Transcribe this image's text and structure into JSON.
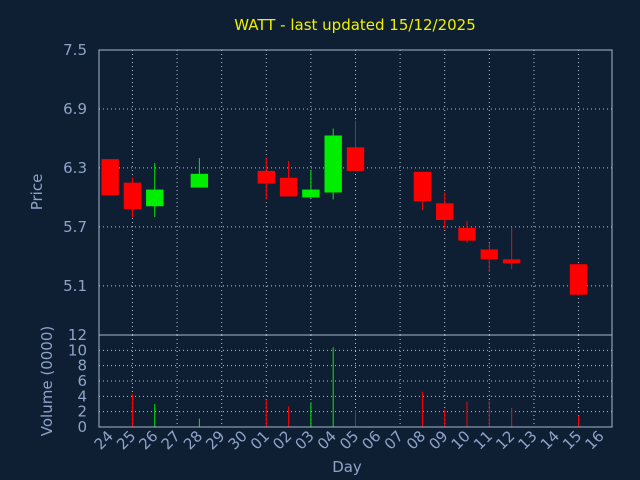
{
  "chart_data": [
    {
      "type": "candlestick",
      "title": "WATT - last updated 15/12/2025",
      "ylabel": "Price",
      "ylim": [
        4.6,
        7.5
      ],
      "yticks": [
        5.1,
        5.7,
        6.3,
        6.9,
        7.5
      ],
      "grid": true,
      "categories": [
        "24",
        "25",
        "26",
        "27",
        "28",
        "29",
        "30",
        "01",
        "02",
        "03",
        "04",
        "05",
        "06",
        "07",
        "08",
        "09",
        "10",
        "11",
        "12",
        "13",
        "14",
        "15",
        "16"
      ],
      "candles": [
        {
          "x": "24",
          "open": 6.39,
          "close": 6.02,
          "high": 6.39,
          "low": 6.02,
          "direction": "down"
        },
        {
          "x": "25",
          "open": 6.15,
          "close": 5.88,
          "high": 6.2,
          "low": 5.8,
          "direction": "down"
        },
        {
          "x": "26",
          "open": 5.91,
          "close": 6.08,
          "high": 6.35,
          "low": 5.8,
          "direction": "up"
        },
        {
          "x": "28",
          "open": 6.1,
          "close": 6.24,
          "high": 6.4,
          "low": 6.1,
          "direction": "up"
        },
        {
          "x": "01",
          "open": 6.27,
          "close": 6.14,
          "high": 6.4,
          "low": 5.98,
          "direction": "down"
        },
        {
          "x": "02",
          "open": 6.2,
          "close": 6.01,
          "high": 6.37,
          "low": 6.01,
          "direction": "down"
        },
        {
          "x": "03",
          "open": 6.0,
          "close": 6.08,
          "high": 6.28,
          "low": 6.0,
          "direction": "up"
        },
        {
          "x": "04",
          "open": 6.05,
          "close": 6.63,
          "high": 6.7,
          "low": 5.98,
          "direction": "up"
        },
        {
          "x": "05",
          "open": 6.51,
          "close": 6.27,
          "high": 6.78,
          "low": 6.27,
          "direction": "down"
        },
        {
          "x": "08",
          "open": 6.26,
          "close": 5.96,
          "high": 6.26,
          "low": 5.87,
          "direction": "down"
        },
        {
          "x": "09",
          "open": 5.94,
          "close": 5.77,
          "high": 6.05,
          "low": 5.68,
          "direction": "down"
        },
        {
          "x": "10",
          "open": 5.69,
          "close": 5.56,
          "high": 5.76,
          "low": 5.54,
          "direction": "down"
        },
        {
          "x": "11",
          "open": 5.47,
          "close": 5.37,
          "high": 5.54,
          "low": 5.24,
          "direction": "down"
        },
        {
          "x": "12",
          "open": 5.37,
          "close": 5.33,
          "high": 5.69,
          "low": 5.27,
          "direction": "down"
        },
        {
          "x": "15",
          "open": 5.32,
          "close": 5.01,
          "high": 5.32,
          "low": 5.01,
          "direction": "down"
        }
      ]
    },
    {
      "type": "bar",
      "ylabel": "Volume (0000)",
      "xlabel": "Day",
      "ylim": [
        0,
        12
      ],
      "yticks": [
        0,
        2,
        4,
        6,
        8,
        10,
        12
      ],
      "grid": true,
      "categories": [
        "24",
        "25",
        "26",
        "27",
        "28",
        "29",
        "30",
        "01",
        "02",
        "03",
        "04",
        "05",
        "06",
        "07",
        "08",
        "09",
        "10",
        "11",
        "12",
        "13",
        "14",
        "15",
        "16"
      ],
      "bars": [
        {
          "x": "25",
          "value": 4.3,
          "direction": "down"
        },
        {
          "x": "26",
          "value": 3.0,
          "direction": "up"
        },
        {
          "x": "28",
          "value": 1.1,
          "direction": "up"
        },
        {
          "x": "01",
          "value": 3.6,
          "direction": "down"
        },
        {
          "x": "02",
          "value": 2.7,
          "direction": "down"
        },
        {
          "x": "03",
          "value": 3.2,
          "direction": "up"
        },
        {
          "x": "04",
          "value": 10.4,
          "direction": "up"
        },
        {
          "x": "05",
          "value": 2.2,
          "direction": "down"
        },
        {
          "x": "08",
          "value": 4.6,
          "direction": "down"
        },
        {
          "x": "09",
          "value": 2.3,
          "direction": "down"
        },
        {
          "x": "10",
          "value": 3.3,
          "direction": "down"
        },
        {
          "x": "11",
          "value": 3.4,
          "direction": "down"
        },
        {
          "x": "12",
          "value": 2.5,
          "direction": "down"
        },
        {
          "x": "15",
          "value": 1.5,
          "direction": "down"
        }
      ]
    }
  ],
  "colors": {
    "background": "#0f1f33",
    "up": "#00ee00",
    "down": "#ff0000",
    "title": "#f0f000",
    "text": "#8fa3c9"
  }
}
